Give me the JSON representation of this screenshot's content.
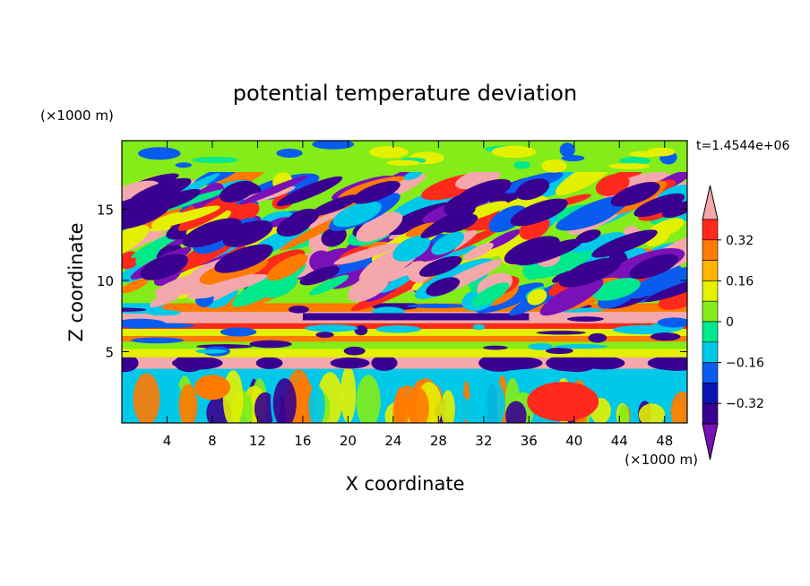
{
  "chart_data": {
    "type": "heatmap",
    "title": "potential temperature deviation",
    "xlabel": "X coordinate",
    "ylabel": "Z coordinate",
    "x_unit_label": "(×1000 m)",
    "y_unit_label": "(×1000 m)",
    "time_label": "t=1.4544e+06",
    "xlim": [
      0,
      50
    ],
    "ylim": [
      0,
      19.8
    ],
    "xticks": [
      4,
      8,
      12,
      16,
      20,
      24,
      28,
      32,
      36,
      40,
      44,
      48
    ],
    "yticks": [
      5,
      10,
      15
    ],
    "colorbar": {
      "levels": [
        -0.48,
        -0.4,
        -0.32,
        -0.24,
        -0.16,
        -0.08,
        0,
        0.08,
        0.16,
        0.24,
        0.32,
        0.4,
        0.48
      ],
      "tick_values": [
        -0.32,
        -0.16,
        0,
        0.16,
        0.32
      ],
      "tick_labels": [
        "−0.32",
        "−0.16",
        "0",
        "0.16",
        "0.32"
      ],
      "colors": [
        "#7a10b8",
        "#3a0090",
        "#0a14b4",
        "#0a5cf0",
        "#00c8e8",
        "#00e88c",
        "#84ec18",
        "#e4f000",
        "#ffb400",
        "#ff7a00",
        "#ff2a1c",
        "#f4a8ac"
      ]
    },
    "bands": [
      {
        "z_range": [
          0,
          3.8
        ],
        "pattern": "vertical plumes",
        "colors": [
          "#00c8e8",
          "#84ec18",
          "#e4f000",
          "#ff7a00",
          "#3a0090"
        ]
      },
      {
        "z_range": [
          3.8,
          4.6
        ],
        "pattern": "warm layer with cold lobes",
        "colors": [
          "#f4a8ac",
          "#3a0090"
        ]
      },
      {
        "z_range": [
          4.6,
          8.4
        ],
        "pattern": "horizontal stratified layers",
        "colors": [
          "#e4f000",
          "#84ec18",
          "#ff2a1c",
          "#f4a8ac",
          "#3a0090"
        ]
      },
      {
        "z_range": [
          8.4,
          17.6
        ],
        "pattern": "tilted turbulent filaments",
        "colors": [
          "#3a0090",
          "#ff7a00",
          "#f4a8ac",
          "#e4f000",
          "#00c8e8"
        ]
      },
      {
        "z_range": [
          17.6,
          19.8
        ],
        "pattern": "weak green",
        "colors": [
          "#84ec18",
          "#00e88c",
          "#0a5cf0"
        ]
      }
    ]
  }
}
